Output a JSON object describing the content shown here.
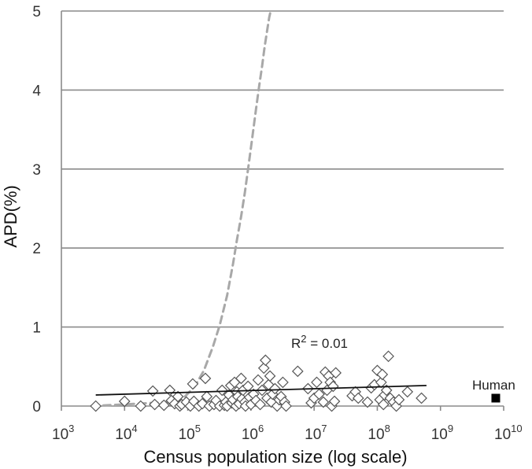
{
  "chart_data": {
    "type": "scatter",
    "title": "",
    "xlabel": "Census population size (log scale)",
    "ylabel": "APD(%)",
    "x_scale": "log",
    "xlim": [
      1000,
      10000000000
    ],
    "ylim": [
      0,
      5
    ],
    "yticks": [
      "0",
      "1",
      "2",
      "3",
      "4",
      "5"
    ],
    "xticks": [
      {
        "base": "10",
        "exp": "3"
      },
      {
        "base": "10",
        "exp": "4"
      },
      {
        "base": "10",
        "exp": "5"
      },
      {
        "base": "10",
        "exp": "6"
      },
      {
        "base": "10",
        "exp": "7"
      },
      {
        "base": "10",
        "exp": "8"
      },
      {
        "base": "10",
        "exp": "9"
      },
      {
        "base": "10",
        "exp": "10"
      }
    ],
    "grid": true,
    "colors": {
      "points": "#555555",
      "trend": "#111111",
      "curve": "#a8a8a8",
      "human": "#000000",
      "grid": "#8a8a8a"
    },
    "series": [
      {
        "marker": "open-diamond",
        "points": [
          [
            3500,
            0.0
          ],
          [
            10000,
            0.06
          ],
          [
            18000,
            0.0
          ],
          [
            28000,
            0.19
          ],
          [
            30000,
            0.02
          ],
          [
            42000,
            0.01
          ],
          [
            52000,
            0.2
          ],
          [
            55000,
            0.07
          ],
          [
            62000,
            0.03
          ],
          [
            70000,
            0.12
          ],
          [
            75000,
            0.0
          ],
          [
            80000,
            0.02
          ],
          [
            95000,
            0.05
          ],
          [
            110000,
            0.0
          ],
          [
            120000,
            0.28
          ],
          [
            125000,
            0.06
          ],
          [
            150000,
            0.0
          ],
          [
            170000,
            0.03
          ],
          [
            190000,
            0.35
          ],
          [
            200000,
            0.12
          ],
          [
            220000,
            0.0
          ],
          [
            260000,
            0.02
          ],
          [
            280000,
            0.07
          ],
          [
            320000,
            0.0
          ],
          [
            350000,
            0.2
          ],
          [
            380000,
            0.01
          ],
          [
            400000,
            0.05
          ],
          [
            420000,
            0.0
          ],
          [
            450000,
            0.14
          ],
          [
            480000,
            0.26
          ],
          [
            500000,
            0.04
          ],
          [
            520000,
            0.08
          ],
          [
            550000,
            0.3
          ],
          [
            580000,
            0.0
          ],
          [
            600000,
            0.18
          ],
          [
            620000,
            0.12
          ],
          [
            650000,
            0.03
          ],
          [
            700000,
            0.35
          ],
          [
            720000,
            0.09
          ],
          [
            750000,
            0.2
          ],
          [
            800000,
            0.05
          ],
          [
            820000,
            0.0
          ],
          [
            900000,
            0.25
          ],
          [
            950000,
            0.11
          ],
          [
            1000000,
            0.02
          ],
          [
            1100000,
            0.15
          ],
          [
            1200000,
            0.07
          ],
          [
            1300000,
            0.33
          ],
          [
            1400000,
            0.02
          ],
          [
            1500000,
            0.2
          ],
          [
            1600000,
            0.48
          ],
          [
            1700000,
            0.58
          ],
          [
            1800000,
            0.1
          ],
          [
            1900000,
            0.27
          ],
          [
            2000000,
            0.38
          ],
          [
            2100000,
            0.05
          ],
          [
            2200000,
            0.15
          ],
          [
            2400000,
            0.22
          ],
          [
            2600000,
            0.0
          ],
          [
            2800000,
            0.08
          ],
          [
            3000000,
            0.12
          ],
          [
            3200000,
            0.3
          ],
          [
            3400000,
            0.05
          ],
          [
            3600000,
            0.0
          ],
          [
            5500000,
            0.44
          ],
          [
            8000000,
            0.22
          ],
          [
            9000000,
            0.04
          ],
          [
            10000000,
            0.1
          ],
          [
            11000000,
            0.3
          ],
          [
            12000000,
            0.15
          ],
          [
            14000000,
            0.05
          ],
          [
            15000000,
            0.43
          ],
          [
            16000000,
            0.2
          ],
          [
            17000000,
            0.38
          ],
          [
            18000000,
            0.3
          ],
          [
            19000000,
            0.0
          ],
          [
            20000000,
            0.25
          ],
          [
            21000000,
            0.06
          ],
          [
            22000000,
            0.42
          ],
          [
            40000000,
            0.13
          ],
          [
            45000000,
            0.18
          ],
          [
            50000000,
            0.1
          ],
          [
            70000000,
            0.05
          ],
          [
            80000000,
            0.23
          ],
          [
            90000000,
            0.27
          ],
          [
            100000000,
            0.45
          ],
          [
            110000000,
            0.08
          ],
          [
            115000000,
            0.3
          ],
          [
            120000000,
            0.4
          ],
          [
            125000000,
            0.02
          ],
          [
            130000000,
            0.14
          ],
          [
            140000000,
            0.2
          ],
          [
            150000000,
            0.63
          ],
          [
            160000000,
            0.1
          ],
          [
            180000000,
            0.05
          ],
          [
            200000000,
            0.0
          ],
          [
            220000000,
            0.08
          ],
          [
            300000000,
            0.18
          ],
          [
            500000000,
            0.1
          ]
        ]
      },
      {
        "name": "Human",
        "marker": "filled-square",
        "points": [
          [
            7500000000,
            0.1
          ]
        ]
      }
    ],
    "trendline": {
      "x": [
        3500,
        600000000
      ],
      "y": [
        0.14,
        0.26
      ],
      "label": "R² = 0.01",
      "r2_prefix": "R",
      "r2_sup": "2",
      "r2_value": " = 0.01"
    },
    "curve": {
      "style": "dashed",
      "x": [
        3000,
        50000,
        90000,
        130000,
        180000,
        250000,
        320000,
        420000,
        520000,
        600000,
        700000,
        800000,
        920000,
        1050000,
        1200000,
        1350000,
        1500000,
        1650000,
        1800000,
        1950000,
        2050000
      ],
      "y": [
        0.0,
        0.05,
        0.12,
        0.25,
        0.45,
        0.75,
        1.02,
        1.4,
        1.8,
        2.1,
        2.4,
        2.7,
        3.05,
        3.4,
        3.75,
        4.05,
        4.3,
        4.55,
        4.75,
        4.92,
        5.0
      ]
    }
  }
}
